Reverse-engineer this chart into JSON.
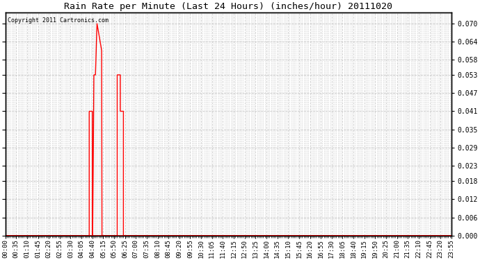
{
  "title": "Rain Rate per Minute (Last 24 Hours) (inches/hour) 20111020",
  "copyright": "Copyright 2011 Cartronics.com",
  "line_color": "#ff0000",
  "background_color": "#ffffff",
  "grid_color": "#c8c8c8",
  "ylim": [
    0.0,
    0.0735
  ],
  "yticks": [
    0.0,
    0.006,
    0.012,
    0.018,
    0.023,
    0.029,
    0.035,
    0.041,
    0.047,
    0.053,
    0.058,
    0.064,
    0.07
  ],
  "ytick_labels": [
    "0.000",
    "0.006",
    "0.012",
    "0.018",
    "0.023",
    "0.029",
    "0.035",
    "0.041",
    "0.047",
    "0.053",
    "0.058",
    "0.064",
    "0.070"
  ],
  "step_data_x": [
    0,
    270,
    270,
    275,
    275,
    280,
    280,
    281,
    281,
    285,
    285,
    290,
    290,
    295,
    295,
    310,
    310,
    311,
    311,
    360,
    360,
    365,
    365,
    370,
    370,
    380,
    380,
    381,
    381,
    1435
  ],
  "step_data_y": [
    0,
    0,
    0.041,
    0.041,
    0.041,
    0.041,
    0,
    0,
    0,
    0.053,
    0.053,
    0.053,
    0.053,
    0.07,
    0.07,
    0.061,
    0.061,
    0,
    0,
    0,
    0.053,
    0.053,
    0.053,
    0.053,
    0.041,
    0.041,
    0,
    0,
    0,
    0
  ],
  "xtick_interval_minor": 5,
  "xtick_interval_major": 35,
  "total_minutes": 1440,
  "figsize": [
    6.9,
    3.75
  ],
  "dpi": 100
}
